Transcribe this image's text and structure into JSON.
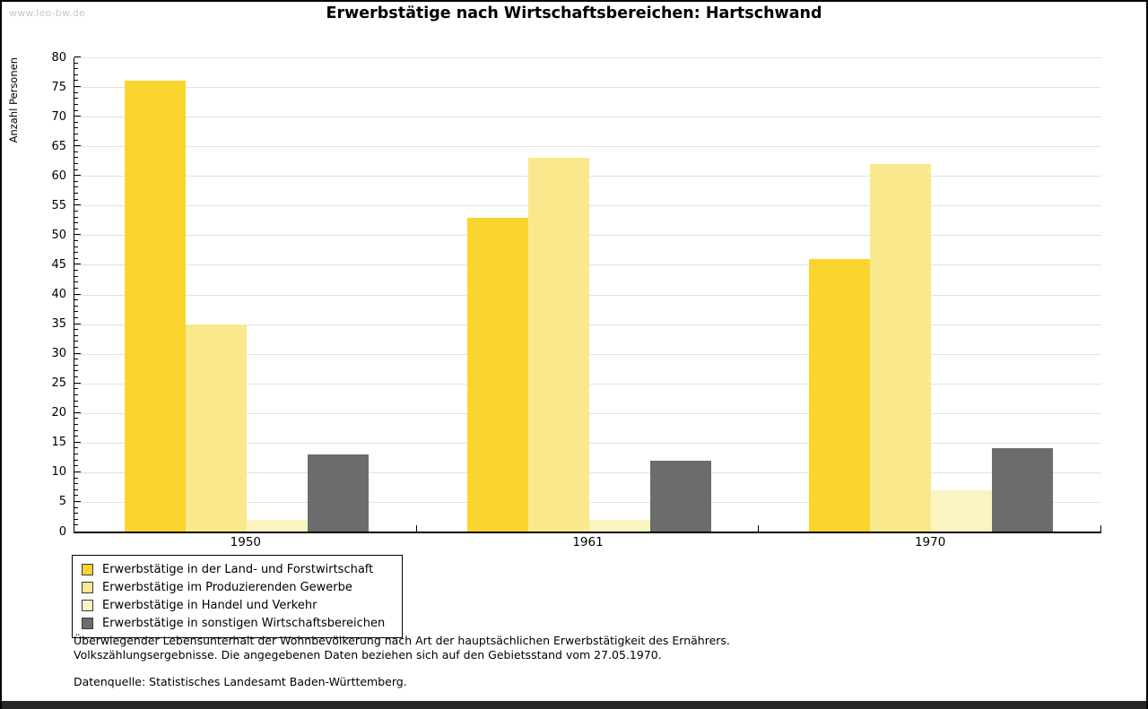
{
  "page": {
    "watermark": "www.leo-bw.de"
  },
  "chart_data": {
    "type": "bar",
    "title": "Erwerbstätige nach Wirtschaftsbereichen: Hartschwand",
    "xlabel": "",
    "ylabel": "Anzahl Personen",
    "ylim": [
      0,
      80
    ],
    "ytick_step": 5,
    "ytick_minor_step": 1,
    "grid": true,
    "legend_position": "bottom-left",
    "categories": [
      "1950",
      "1961",
      "1970"
    ],
    "series": [
      {
        "name": "Erwerbstätige in der Land- und Forstwirtschaft",
        "color": "#FCD42E",
        "values": [
          76,
          53,
          46
        ]
      },
      {
        "name": "Erwerbstätige im Produzierenden Gewerbe",
        "color": "#FAE88C",
        "values": [
          35,
          63,
          62
        ]
      },
      {
        "name": "Erwerbstätige in Handel und Verkehr",
        "color": "#FBF4C2",
        "values": [
          2,
          2,
          7
        ]
      },
      {
        "name": "Erwerbstätige in sonstigen Wirtschaftsbereichen",
        "color": "#6C6C6C",
        "values": [
          13,
          12,
          14
        ]
      }
    ]
  },
  "footer": {
    "line1": "Überwiegender Lebensunterhalt der Wohnbevölkerung nach Art der hauptsächlichen Erwerbstätigkeit des Ernährers.",
    "line2": "Volkszählungsergebnisse. Die angegebenen Daten beziehen sich auf den Gebietsstand vom 27.05.1970.",
    "source": "Datenquelle: Statistisches Landesamt Baden-Württemberg."
  },
  "colors": {
    "gridline": "#e2e2e2",
    "axis": "#000000",
    "watermark": "#c9c9c9",
    "bottom_bar": "#262626"
  }
}
